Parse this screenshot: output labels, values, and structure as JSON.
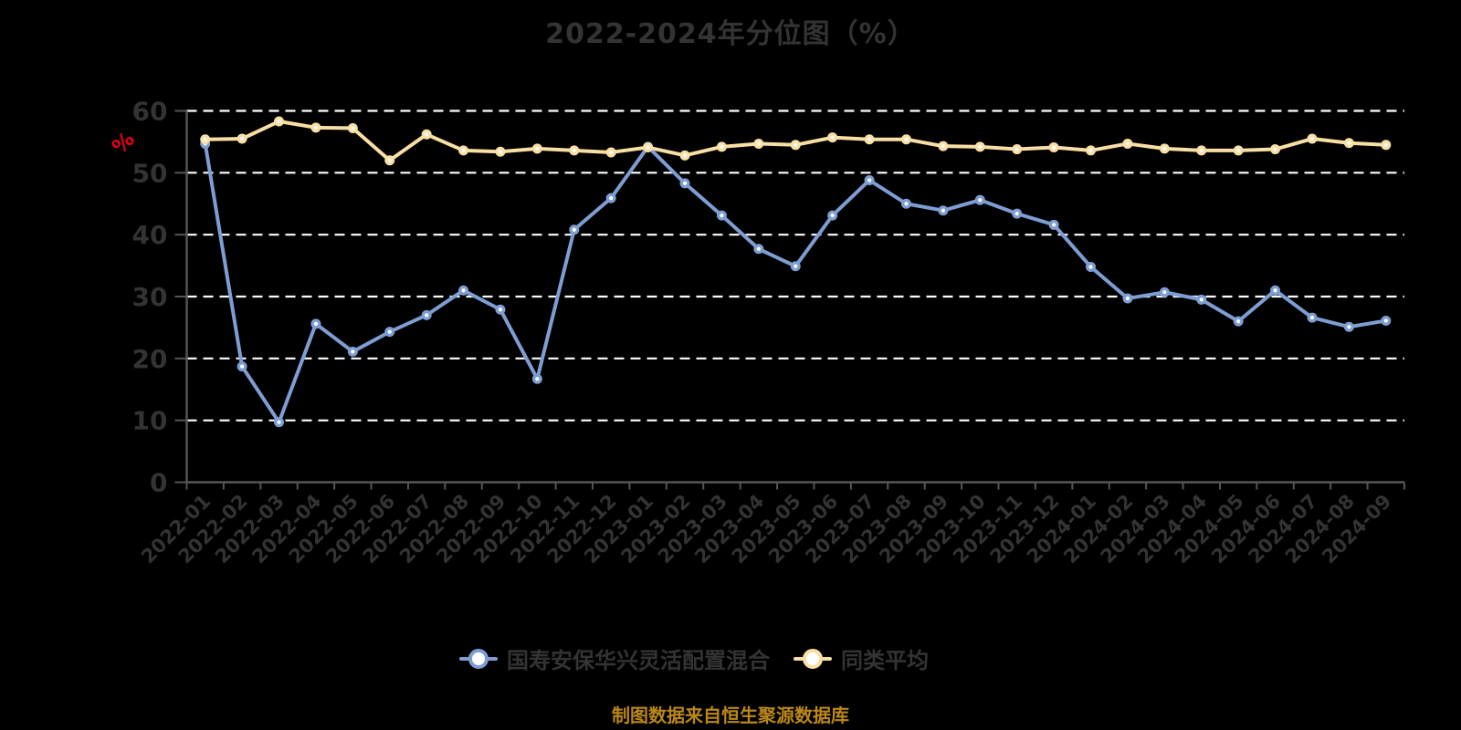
{
  "page": {
    "background": "#000000"
  },
  "header": {
    "title": "2022-2024年分位图（%）"
  },
  "y_axis": {
    "unit_label": "%",
    "unit_color": "#e60012"
  },
  "legend": {
    "items": [
      {
        "label": "国寿安保华兴灵活配置混合",
        "color": "#7E9ED3"
      },
      {
        "label": "同类平均",
        "color": "#FADFA5"
      }
    ]
  },
  "footer": {
    "note": "制图数据来自恒生聚源数据库",
    "color": "#BA8718"
  },
  "chart_data": {
    "type": "line",
    "title": "2022-2024年分位图（%）",
    "xlabel": "",
    "ylabel": "%",
    "ylim": [
      0,
      60
    ],
    "y_ticks": [
      0,
      10,
      20,
      30,
      40,
      50,
      60
    ],
    "grid": "horizontal-dashed-white",
    "legend_position": "bottom",
    "categories": [
      "2022-01",
      "2022-02",
      "2022-03",
      "2022-04",
      "2022-05",
      "2022-06",
      "2022-07",
      "2022-08",
      "2022-09",
      "2022-10",
      "2022-11",
      "2022-12",
      "2023-01",
      "2023-02",
      "2023-03",
      "2023-04",
      "2023-05",
      "2023-06",
      "2023-07",
      "2023-08",
      "2023-09",
      "2023-10",
      "2023-11",
      "2023-12",
      "2024-01",
      "2024-02",
      "2024-03",
      "2024-04",
      "2024-05",
      "2024-06",
      "2024-07",
      "2024-08",
      "2024-09"
    ],
    "series": [
      {
        "name": "国寿安保华兴灵活配置混合",
        "color": "#7E9ED3",
        "values": [
          54.7,
          18.7,
          9.7,
          25.6,
          21.1,
          24.3,
          27.0,
          31.0,
          27.9,
          16.7,
          40.8,
          45.9,
          54.2,
          48.3,
          43.1,
          37.7,
          34.9,
          43.1,
          48.8,
          45.0,
          43.9,
          45.6,
          43.4,
          41.6,
          34.8,
          29.7,
          30.7,
          29.5,
          26.0,
          31.0,
          26.6,
          25.1,
          26.1
        ]
      },
      {
        "name": "同类平均",
        "color": "#FADFA5",
        "values": [
          55.4,
          55.5,
          58.3,
          57.3,
          57.2,
          52.0,
          56.2,
          53.6,
          53.4,
          53.9,
          53.6,
          53.3,
          54.1,
          52.8,
          54.2,
          54.7,
          54.5,
          55.7,
          55.4,
          55.4,
          54.3,
          54.2,
          53.8,
          54.1,
          53.6,
          54.7,
          53.9,
          53.6,
          53.6,
          53.8,
          55.5,
          54.8,
          54.5
        ]
      }
    ]
  }
}
